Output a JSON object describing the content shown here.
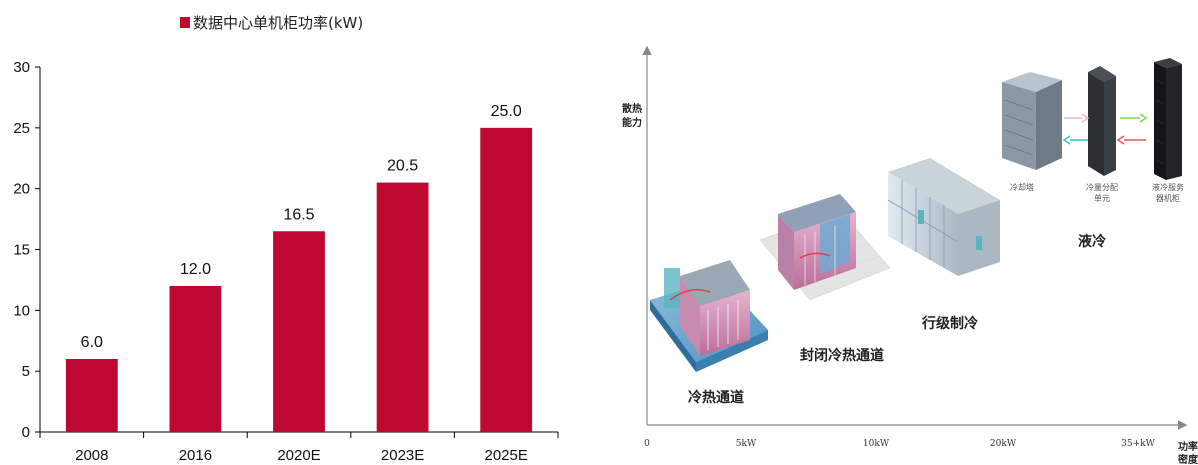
{
  "chart_data": {
    "type": "bar",
    "legend": "数据中心单机柜功率(kW)",
    "categories": [
      "2008",
      "2016",
      "2020E",
      "2023E",
      "2025E"
    ],
    "values": [
      6.0,
      12.0,
      16.5,
      20.5,
      25.0
    ],
    "value_labels": [
      "6.0",
      "12.0",
      "16.5",
      "20.5",
      "25.0"
    ],
    "ylim": [
      0,
      30
    ],
    "yticks": [
      0,
      5,
      10,
      15,
      20,
      25,
      30
    ],
    "bar_color": "#BE0731",
    "legend_placement": "top-center"
  },
  "diagram": {
    "y_axis_label_line1": "散热",
    "y_axis_label_line2": "能力",
    "x_axis_label_line1": "功率",
    "x_axis_label_line2": "密度",
    "x_ticks": [
      "0",
      "5kW",
      "10kW",
      "20kW",
      "35+kW"
    ],
    "stages": {
      "hot_cold_aisle": "冷热通道",
      "closed_aisle": "封闭冷热通道",
      "row_cooling": "行级制冷",
      "liquid_cooling": "液冷"
    },
    "components": {
      "cooling_tower": "冷却塔",
      "cdu_line1": "冷量分配",
      "cdu_line2": "单元",
      "server_line1": "液冷服务",
      "server_line2": "器机柜"
    }
  }
}
